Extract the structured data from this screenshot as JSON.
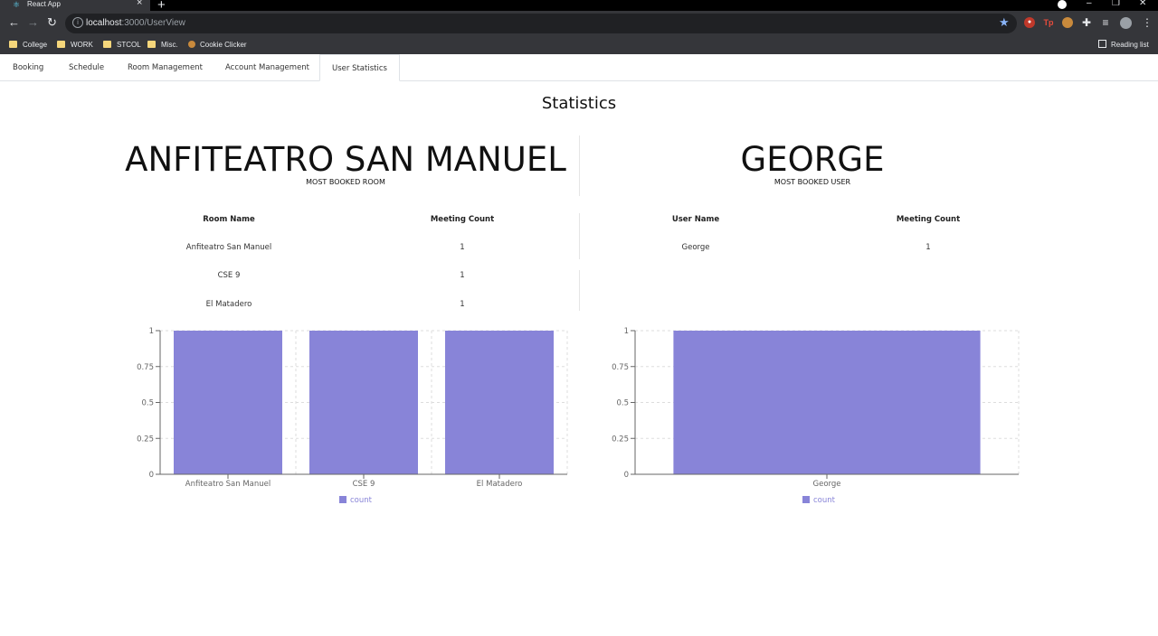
{
  "browser": {
    "tab_title": "React App",
    "url_host": "localhost",
    "url_path": ":3000/UserView",
    "bookmarks": [
      "College",
      "WORK",
      "STCOL",
      "Misc.",
      "Cookie Clicker"
    ],
    "reading_list": "Reading list"
  },
  "nav": {
    "tabs": [
      "Booking",
      "Schedule",
      "Room Management",
      "Account Management",
      "User Statistics"
    ],
    "active": "User Statistics"
  },
  "page": {
    "title": "Statistics"
  },
  "room_panel": {
    "headline": "ANFITEATRO SAN MANUEL",
    "subtitle": "MOST BOOKED ROOM",
    "columns": [
      "Room Name",
      "Meeting Count"
    ],
    "rows": [
      [
        "Anfiteatro San Manuel",
        "1"
      ],
      [
        "CSE 9",
        "1"
      ],
      [
        "El Matadero",
        "1"
      ]
    ]
  },
  "user_panel": {
    "headline": "GEORGE",
    "subtitle": "MOST BOOKED USER",
    "columns": [
      "User Name",
      "Meeting Count"
    ],
    "rows": [
      [
        "George",
        "1"
      ]
    ]
  },
  "chart_data": [
    {
      "type": "bar",
      "categories": [
        "Anfiteatro San Manuel",
        "CSE 9",
        "El Matadero"
      ],
      "series": [
        {
          "name": "count",
          "values": [
            1,
            1,
            1
          ]
        }
      ],
      "ylim": [
        0,
        1
      ],
      "yticks": [
        "0",
        "0.25",
        "0.5",
        "0.75",
        "1"
      ],
      "grid": true,
      "legend": "bottom",
      "bar_color": "#8884d8"
    },
    {
      "type": "bar",
      "categories": [
        "George"
      ],
      "series": [
        {
          "name": "count",
          "values": [
            1
          ]
        }
      ],
      "ylim": [
        0,
        1
      ],
      "yticks": [
        "0",
        "0.25",
        "0.5",
        "0.75",
        "1"
      ],
      "grid": true,
      "legend": "bottom",
      "bar_color": "#8884d8"
    }
  ]
}
